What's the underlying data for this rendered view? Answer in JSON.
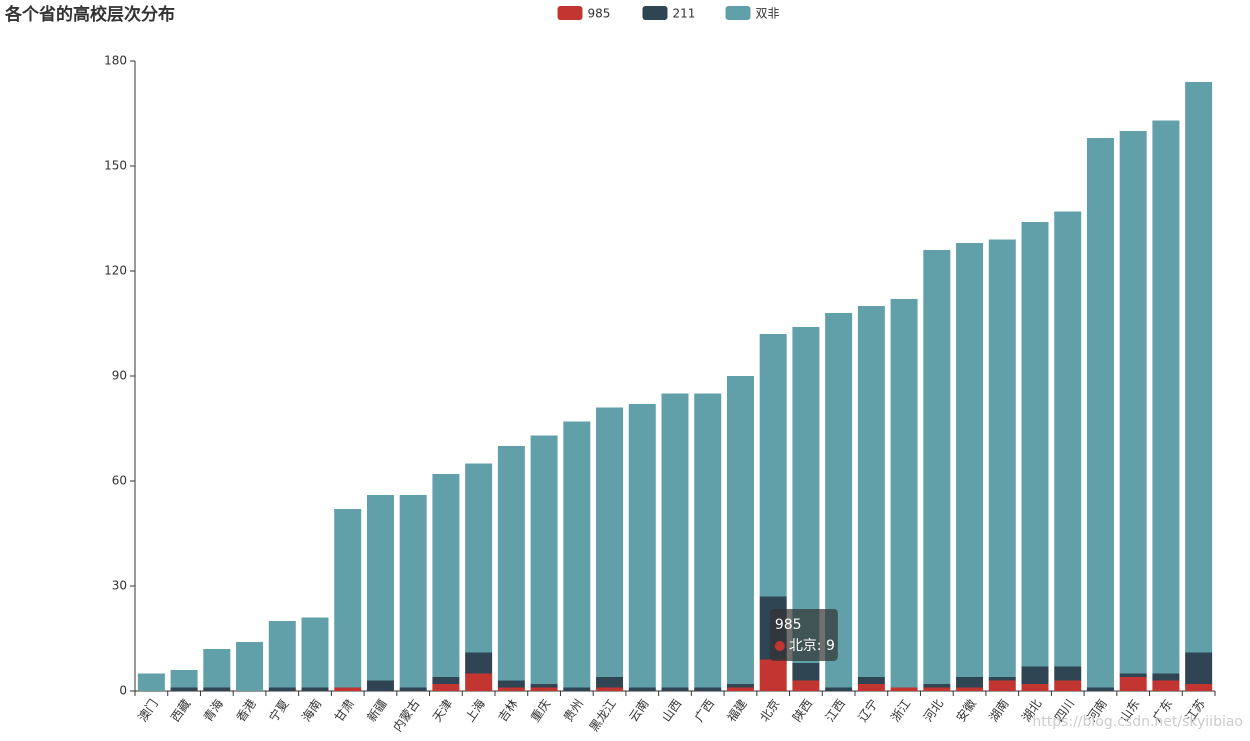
{
  "chart_data": {
    "type": "stacked_bar",
    "title": "各个省的高校层次分布",
    "categories": [
      "澳门",
      "西藏",
      "青海",
      "香港",
      "宁夏",
      "海南",
      "甘肃",
      "新疆",
      "内蒙古",
      "天津",
      "上海",
      "吉林",
      "重庆",
      "贵州",
      "黑龙江",
      "云南",
      "山西",
      "广西",
      "福建",
      "北京",
      "陕西",
      "江西",
      "辽宁",
      "浙江",
      "河北",
      "安徽",
      "湖南",
      "湖北",
      "四川",
      "河南",
      "山东",
      "广东",
      "江苏"
    ],
    "series": [
      {
        "name": "985",
        "color": "#c23531",
        "values": [
          0,
          0,
          0,
          0,
          0,
          0,
          1,
          0,
          0,
          2,
          5,
          1,
          1,
          0,
          1,
          0,
          0,
          0,
          1,
          9,
          3,
          0,
          2,
          1,
          1,
          1,
          3,
          2,
          3,
          0,
          4,
          3,
          2
        ]
      },
      {
        "name": "211",
        "color": "#2f4554",
        "values": [
          0,
          1,
          1,
          0,
          1,
          1,
          0,
          3,
          1,
          2,
          6,
          2,
          1,
          1,
          3,
          1,
          1,
          1,
          1,
          18,
          5,
          1,
          2,
          0,
          1,
          3,
          1,
          5,
          4,
          1,
          1,
          2,
          9
        ]
      },
      {
        "name": "双非",
        "color": "#61a0a8",
        "values": [
          5,
          5,
          11,
          14,
          19,
          20,
          51,
          53,
          55,
          58,
          54,
          67,
          71,
          76,
          77,
          81,
          84,
          84,
          88,
          75,
          96,
          107,
          106,
          111,
          124,
          124,
          125,
          127,
          130,
          157,
          155,
          158,
          163
        ]
      }
    ],
    "ylim": [
      0,
      180
    ],
    "yticks": [
      0,
      30,
      60,
      90,
      120,
      150,
      180
    ],
    "tooltip": {
      "title": "985",
      "text": "北京: 9"
    },
    "watermark": "https://blog.csdn.net/skyiibiao"
  }
}
